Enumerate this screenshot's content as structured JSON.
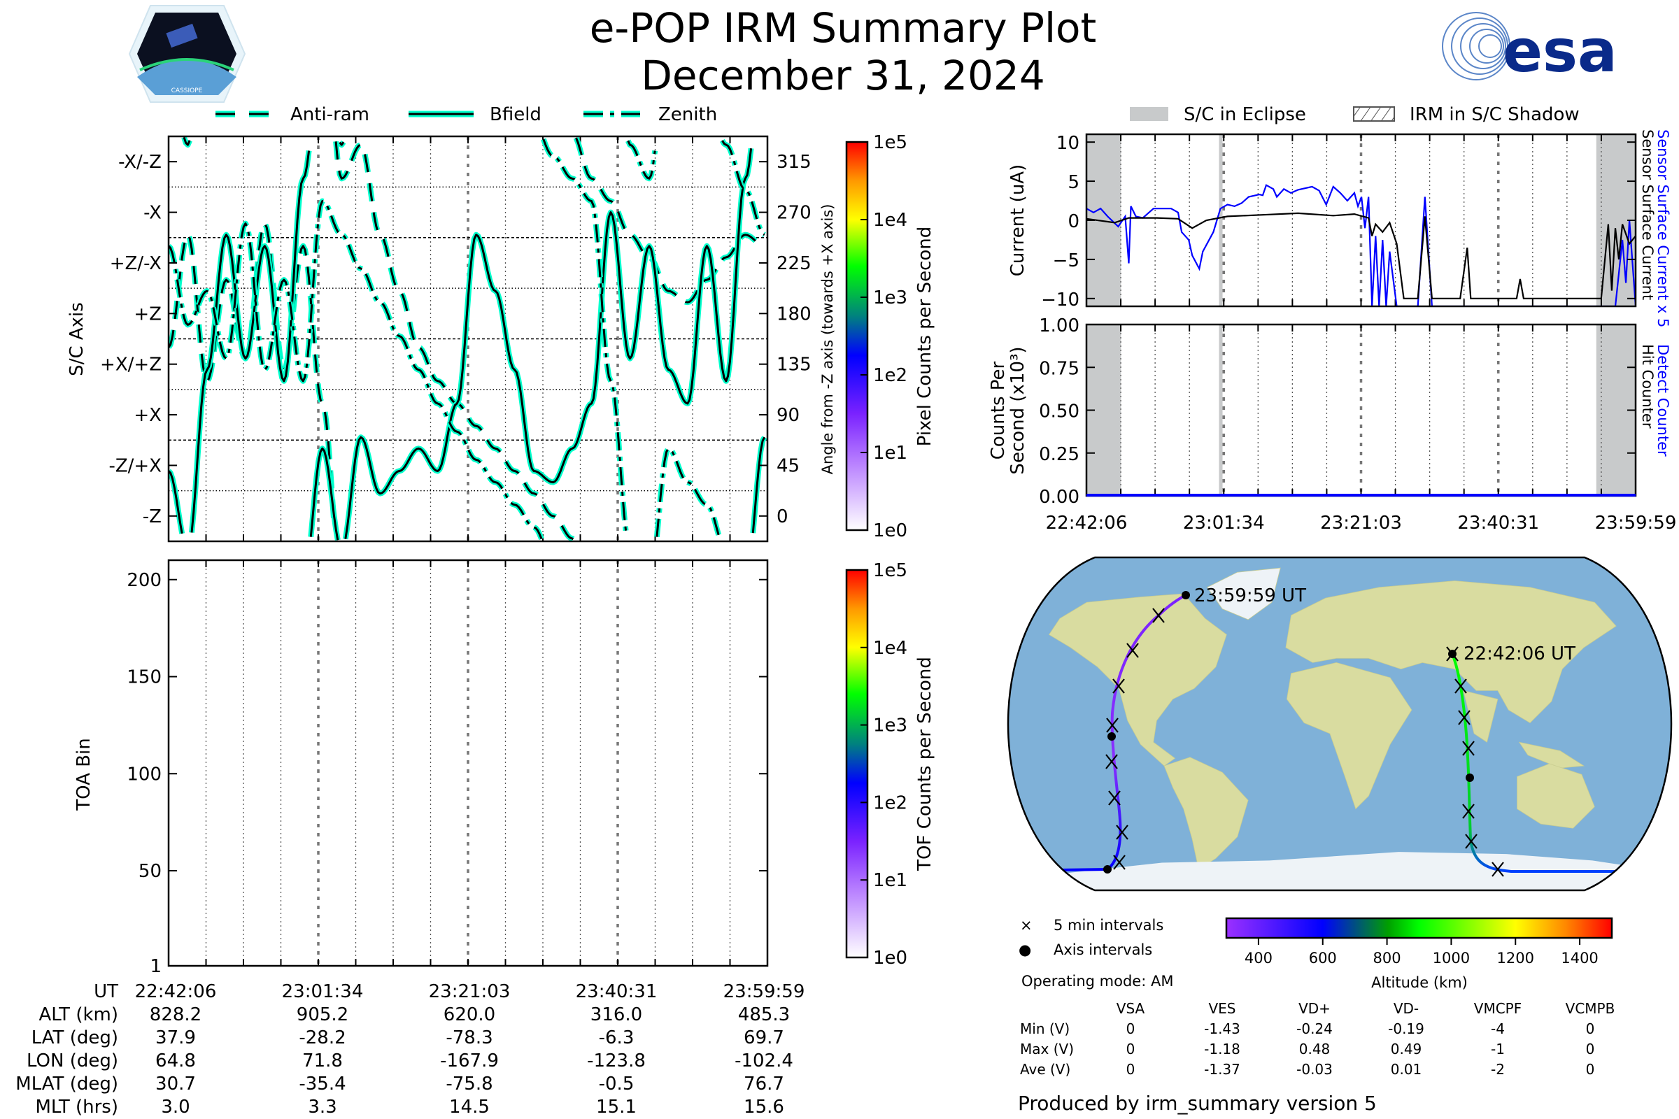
{
  "header": {
    "title": "e-POP IRM Summary Plot",
    "date": "December 31, 2024",
    "logo_left": "CASSIOPE",
    "logo_right": "esa"
  },
  "colors": {
    "cyan": "#00ffcc",
    "blue": "#0000ff",
    "eclipse": "#c8cacb",
    "ocean": "#7fb1d8",
    "land": "#d9dca0",
    "ice": "#eef3f7"
  },
  "attitude_legend": [
    "Anti-ram",
    "Bfield",
    "Zenith"
  ],
  "eclipse_legend": [
    "S/C in Eclipse",
    "IRM in S/C Shadow"
  ],
  "time_ticks": [
    "22:42:06",
    "23:01:34",
    "23:21:03",
    "23:40:31",
    "23:59:59"
  ],
  "chart_data": [
    {
      "id": "attitude",
      "type": "line",
      "ylabel": "S/C Axis",
      "ylabel_right": "Angle from -Z axis (towards +X axis)",
      "x_unit": "minutes since 22:42:06",
      "xlim": [
        0,
        77.88
      ],
      "ylim": [
        -22.5,
        337.5
      ],
      "left_ticks": [
        "-Z",
        "-Z/+X",
        "+X",
        "+X/+Z",
        "+Z",
        "+Z/-X",
        "-X",
        "-X/-Z"
      ],
      "right_ticks": [
        "0",
        "45",
        "90",
        "135",
        "180",
        "225",
        "270",
        "315"
      ],
      "colorbar": {
        "label": "Pixel Counts per Second",
        "ticks": [
          "1e0",
          "1e1",
          "1e2",
          "1e3",
          "1e4",
          "1e5"
        ]
      },
      "x_step_min": 2.5,
      "series": [
        {
          "name": "Anti-ram",
          "style": "dashed",
          "values": [
            150,
            250,
            120,
            210,
            140,
            260,
            130,
            240,
            100,
            300,
            330,
            250,
            200,
            150,
            120,
            100,
            80,
            60,
            40,
            20,
            0,
            340,
            300,
            280,
            250,
            230,
            200,
            190,
            210,
            230,
            250,
            240
          ]
        },
        {
          "name": "Bfield",
          "style": "solid",
          "values": [
            40,
            330,
            130,
            250,
            140,
            240,
            120,
            300,
            60,
            330,
            70,
            20,
            40,
            60,
            40,
            100,
            250,
            200,
            130,
            40,
            30,
            60,
            100,
            270,
            140,
            240,
            130,
            100,
            240,
            120,
            300,
            70
          ]
        },
        {
          "name": "Zenith",
          "style": "dashdot",
          "values": [
            240,
            170,
            200,
            140,
            260,
            130,
            210,
            120,
            280,
            250,
            220,
            190,
            160,
            130,
            100,
            75,
            50,
            30,
            10,
            350,
            320,
            300,
            280,
            120,
            330,
            300,
            60,
            30,
            10,
            330,
            290,
            250
          ]
        }
      ]
    },
    {
      "id": "toa",
      "type": "heatmap",
      "ylabel": "TOA Bin",
      "ylim": [
        1,
        210
      ],
      "yticks": [
        "1",
        "50",
        "100",
        "150",
        "200"
      ],
      "colorbar": {
        "label": "TOF Counts per Second",
        "ticks": [
          "1e0",
          "1e1",
          "1e2",
          "1e3",
          "1e4",
          "1e5"
        ]
      }
    },
    {
      "id": "current",
      "type": "line",
      "ylabel": "Current (uA)",
      "ylim": [
        -11,
        11
      ],
      "yticks": [
        "−10",
        "−5",
        "0",
        "5",
        "10"
      ],
      "right_labels": [
        "Sensor Surface Current x 5",
        "Sensor Surface Current"
      ],
      "eclipse_intervals_min": [
        [
          0,
          4.9
        ],
        [
          18.8,
          19.3
        ],
        [
          72.3,
          77.88
        ]
      ],
      "series": [
        {
          "name": "Sensor Surface Current x 5",
          "color": "#0000ff",
          "points": [
            [
              0,
              1.5
            ],
            [
              1,
              1.0
            ],
            [
              2,
              1.5
            ],
            [
              3,
              0.5
            ],
            [
              4.5,
              -0.8
            ],
            [
              5.5,
              0.5
            ],
            [
              6,
              -5.5
            ],
            [
              6.3,
              1.8
            ],
            [
              7,
              0.5
            ],
            [
              8,
              0.3
            ],
            [
              9.5,
              1.5
            ],
            [
              12,
              1.5
            ],
            [
              13,
              1.0
            ],
            [
              13.5,
              -1.5
            ],
            [
              14.5,
              -2.5
            ],
            [
              15,
              -4.5
            ],
            [
              16,
              -6.2
            ],
            [
              16.5,
              -4
            ],
            [
              18,
              -1.5
            ],
            [
              19,
              1.5
            ],
            [
              20,
              2.0
            ],
            [
              21,
              1.8
            ],
            [
              22,
              2.2
            ],
            [
              23,
              3.0
            ],
            [
              24.5,
              3.3
            ],
            [
              25,
              3.2
            ],
            [
              25.5,
              4.5
            ],
            [
              26.5,
              4.0
            ],
            [
              27,
              3.0
            ],
            [
              28,
              4.0
            ],
            [
              29,
              3.5
            ],
            [
              30,
              3.9
            ],
            [
              32,
              4.3
            ],
            [
              33,
              3.8
            ],
            [
              34,
              2.0
            ],
            [
              35,
              4.3
            ],
            [
              36,
              3.5
            ],
            [
              37,
              2.5
            ],
            [
              38,
              3.5
            ],
            [
              38.5,
              1.8
            ],
            [
              39,
              3.0
            ],
            [
              39.5,
              -1
            ],
            [
              40,
              3.0
            ],
            [
              40.5,
              -11
            ],
            [
              41,
              -2
            ],
            [
              41.5,
              -11
            ],
            [
              42,
              -2.5
            ],
            [
              42.5,
              -11
            ],
            [
              43,
              -4
            ],
            [
              44,
              -11
            ],
            [
              47,
              -11
            ],
            [
              48,
              3
            ],
            [
              49,
              -11
            ],
            [
              75,
              -11
            ],
            [
              76,
              -2.5
            ],
            [
              76.5,
              -8
            ],
            [
              77,
              0
            ],
            [
              77.88,
              -11
            ]
          ]
        },
        {
          "name": "Sensor Surface Current",
          "color": "#000000",
          "points": [
            [
              0,
              0.2
            ],
            [
              4,
              -0.3
            ],
            [
              6,
              0.3
            ],
            [
              10,
              0.3
            ],
            [
              13,
              0.2
            ],
            [
              15,
              -1.0
            ],
            [
              17,
              0.0
            ],
            [
              20,
              0.5
            ],
            [
              25,
              0.7
            ],
            [
              30,
              0.9
            ],
            [
              35,
              0.6
            ],
            [
              38,
              0.8
            ],
            [
              40,
              0.3
            ],
            [
              40.5,
              -2
            ],
            [
              41,
              -0.5
            ],
            [
              42,
              -1.5
            ],
            [
              43,
              -0.3
            ],
            [
              44,
              -3
            ],
            [
              45,
              -10
            ],
            [
              47,
              -10
            ],
            [
              48,
              0.5
            ],
            [
              49,
              -10
            ],
            [
              53,
              -10
            ],
            [
              54,
              -3.5
            ],
            [
              54.5,
              -10
            ],
            [
              61,
              -10
            ],
            [
              61.5,
              -7.5
            ],
            [
              62,
              -10
            ],
            [
              73,
              -10
            ],
            [
              74,
              -0.5
            ],
            [
              74.5,
              -9
            ],
            [
              75,
              -1
            ],
            [
              75.5,
              -5
            ],
            [
              76,
              -0.5
            ],
            [
              77,
              -3
            ],
            [
              77.88,
              -2
            ]
          ]
        }
      ]
    },
    {
      "id": "counts",
      "type": "line",
      "ylabel": [
        "Counts Per",
        "Second (x10³)"
      ],
      "ylim": [
        0,
        1
      ],
      "yticks": [
        "0.00",
        "0.25",
        "0.50",
        "0.75",
        "1.00"
      ],
      "right_labels": [
        "Detect Counter",
        "Hit Counter"
      ],
      "series": [
        {
          "name": "Detect Counter",
          "color": "#0000ff",
          "points": [
            [
              0,
              0
            ],
            [
              77.88,
              0
            ]
          ]
        }
      ]
    },
    {
      "id": "altitude_colorbar",
      "type": "heatmap",
      "label": "Altitude (km)",
      "range": [
        300,
        1500
      ],
      "ticks": [
        "400",
        "600",
        "800",
        "1000",
        "1200",
        "1400"
      ]
    }
  ],
  "orbit_table": {
    "labels": [
      "UT",
      "ALT (km)",
      "LAT (deg)",
      "LON (deg)",
      "MLAT (deg)",
      "MLT (hrs)"
    ],
    "columns": [
      [
        "22:42:06",
        "828.2",
        "37.9",
        "64.8",
        "30.7",
        "3.0"
      ],
      [
        "23:01:34",
        "905.2",
        "-28.2",
        "71.8",
        "-35.4",
        "3.3"
      ],
      [
        "23:21:03",
        "620.0",
        "-78.3",
        "-167.9",
        "-75.8",
        "14.5"
      ],
      [
        "23:40:31",
        "316.0",
        "-6.3",
        "-123.8",
        "-0.5",
        "15.1"
      ],
      [
        "23:59:59",
        "485.3",
        "69.7",
        "-102.4",
        "76.7",
        "15.6"
      ]
    ]
  },
  "map": {
    "start_label": "22:42:06 UT",
    "end_label": "23:59:59 UT",
    "legend": [
      {
        "symbol": "×",
        "label": "5 min intervals"
      },
      {
        "symbol": "●",
        "label": "Axis intervals"
      }
    ],
    "operating_mode": "Operating mode: AM"
  },
  "voltage_table": {
    "headers": [
      "VSA",
      "VES",
      "VD+",
      "VD-",
      "VMCPF",
      "VCMPB"
    ],
    "rows": [
      {
        "label": "Min (V)",
        "values": [
          "0",
          "-1.43",
          "-0.24",
          "-0.19",
          "-4",
          "0"
        ]
      },
      {
        "label": "Max (V)",
        "values": [
          "0",
          "-1.18",
          "0.48",
          "0.49",
          "-1",
          "0"
        ]
      },
      {
        "label": "Ave (V)",
        "values": [
          "0",
          "-1.37",
          "-0.03",
          "0.01",
          "-2",
          "0"
        ]
      }
    ]
  },
  "footer": "Produced by irm_summary version 5"
}
